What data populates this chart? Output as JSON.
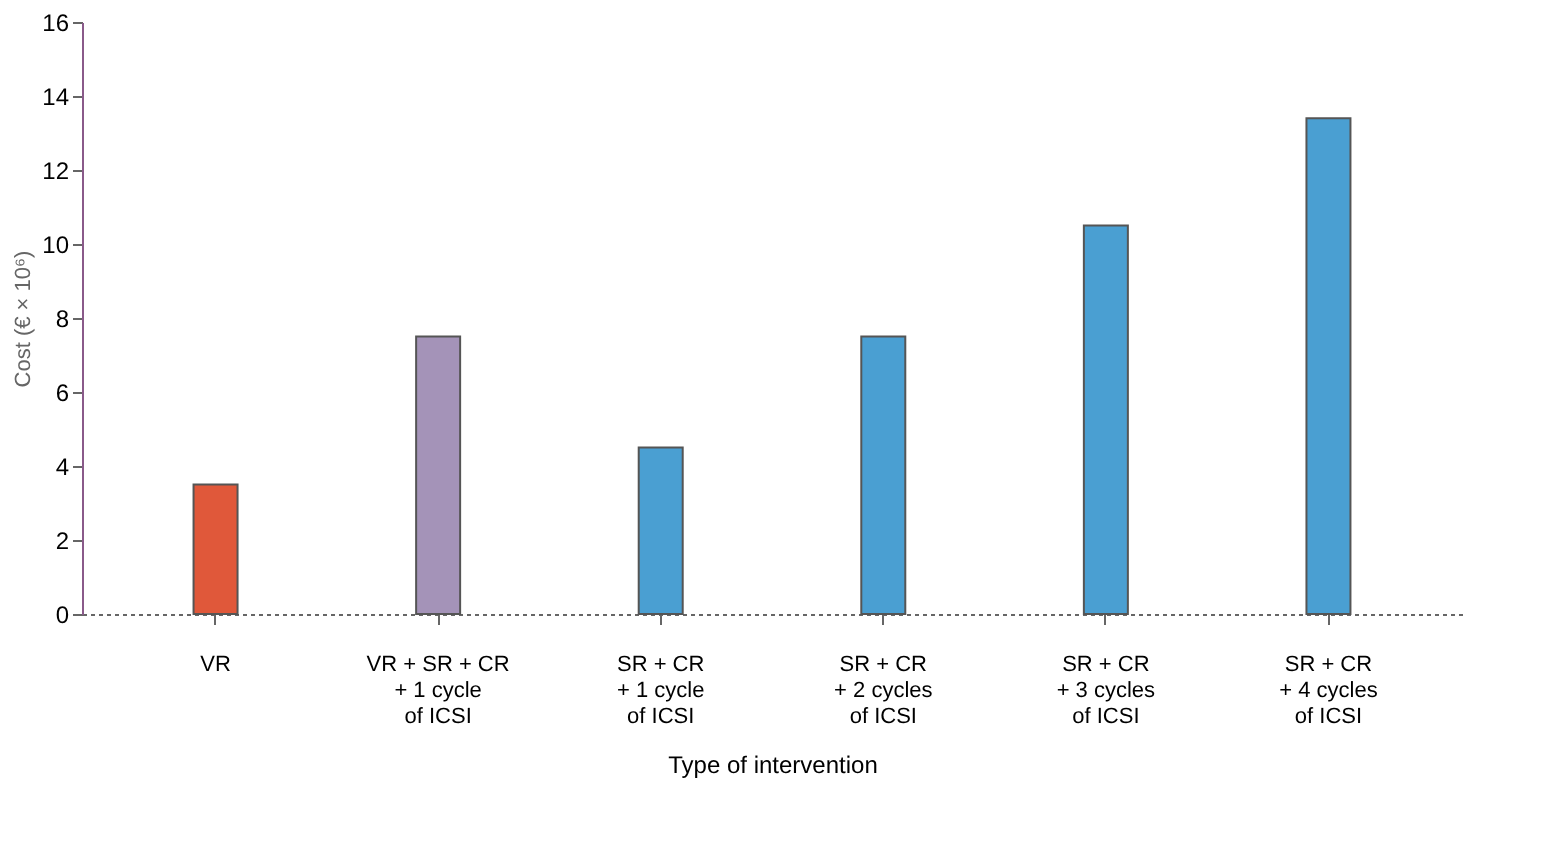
{
  "chart_data": {
    "type": "bar",
    "categories": [
      "VR",
      "VR + SR + CR\n+ 1 cycle\nof ICSI",
      "SR + CR\n+ 1 cycle\nof ICSI",
      "SR + CR\n+ 2 cycles\nof ICSI",
      "SR + CR\n+ 3 cycles\nof ICSI",
      "SR + CR\n+ 4 cycles\nof ICSI"
    ],
    "values": [
      3.5,
      7.5,
      4.5,
      7.5,
      10.5,
      13.4
    ],
    "colors": [
      "#e0583a",
      "#a493b8",
      "#4a9fd2",
      "#4a9fd2",
      "#4a9fd2",
      "#4a9fd2"
    ],
    "xlabel": "Type of intervention",
    "ylabel": "Cost (€ × 10⁶)",
    "ylim": [
      0,
      16
    ],
    "yticks": [
      0,
      2,
      4,
      6,
      8,
      10,
      12,
      14,
      16
    ],
    "grid": false
  }
}
